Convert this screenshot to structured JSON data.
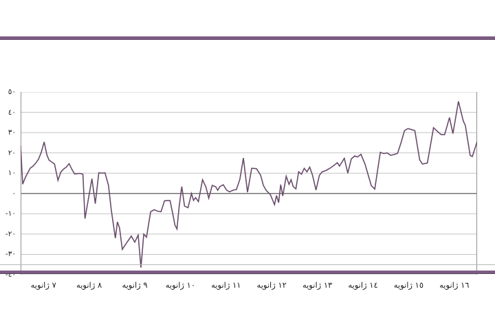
{
  "decor": {
    "top_bar_color": "#7d5c83",
    "top_bar_edge_color": "#5c4163",
    "bottom_bar_color": "#7d5c83",
    "bottom_bar_edge_color": "#5c4163",
    "separator_line_color": "#b8b8b8",
    "background_color": "#ffffff"
  },
  "chart_data": {
    "type": "line",
    "title": "",
    "xlabel": "",
    "ylabel": "",
    "legend": "none",
    "grid": "horizontal",
    "grid_color": "#c4c4c4",
    "zero_line_color": "#5a5a5a",
    "axis_color": "#8e8e8e",
    "line_color": "#694b6b",
    "label_color": "#1d1d1d",
    "ylim": [
      -40,
      50
    ],
    "xlim_days": [
      7,
      17
    ],
    "y_ticks": [
      50,
      40,
      30,
      20,
      10,
      0,
      -10,
      -20,
      -30,
      -40
    ],
    "y_tick_labels": [
      "٥٠",
      "٤٠",
      "٣٠",
      "٢٠",
      "١٠",
      "٠",
      "-١٠",
      "-٢٠",
      "-٣٠",
      "-٤٠"
    ],
    "x_tick_labels": [
      "٧ ژانویه",
      "٨ ژانویه",
      "٩ ژانویه",
      "١٠ ژانویه",
      "١١ ژانویه",
      "١٢ ژانویه",
      "١٣ ژانویه",
      "١٤ ژانویه",
      "١٥ ژانویه",
      "١٦ ژانویه"
    ],
    "series": [
      {
        "name": "series-1",
        "points": [
          [
            7.0,
            23.3
          ],
          [
            7.045,
            4.6
          ],
          [
            7.106,
            8.0
          ],
          [
            7.152,
            10.0
          ],
          [
            7.212,
            12.5
          ],
          [
            7.273,
            13.5
          ],
          [
            7.333,
            15.0
          ],
          [
            7.394,
            17.0
          ],
          [
            7.455,
            20.5
          ],
          [
            7.515,
            25.4
          ],
          [
            7.576,
            19.0
          ],
          [
            7.621,
            16.5
          ],
          [
            7.682,
            15.5
          ],
          [
            7.742,
            14.5
          ],
          [
            7.818,
            6.5
          ],
          [
            7.879,
            10.5
          ],
          [
            7.939,
            12.0
          ],
          [
            8.0,
            13.0
          ],
          [
            8.061,
            14.7
          ],
          [
            8.121,
            12.0
          ],
          [
            8.182,
            9.6
          ],
          [
            8.242,
            9.8
          ],
          [
            8.303,
            9.9
          ],
          [
            8.364,
            9.5
          ],
          [
            8.409,
            -12.4
          ],
          [
            8.561,
            7.3
          ],
          [
            8.636,
            -5.0
          ],
          [
            8.712,
            10.2
          ],
          [
            8.788,
            10.0
          ],
          [
            8.848,
            10.2
          ],
          [
            8.924,
            4.0
          ],
          [
            8.985,
            -8.0
          ],
          [
            9.03,
            -15.0
          ],
          [
            9.076,
            -22.0
          ],
          [
            9.121,
            -14.0
          ],
          [
            9.167,
            -17.0
          ],
          [
            9.227,
            -27.5
          ],
          [
            9.288,
            -25.5
          ],
          [
            9.424,
            -21.0
          ],
          [
            9.5,
            -24.0
          ],
          [
            9.576,
            -20.5
          ],
          [
            9.636,
            -36.5
          ],
          [
            9.697,
            -20.0
          ],
          [
            9.758,
            -21.5
          ],
          [
            9.848,
            -9.0
          ],
          [
            9.924,
            -8.0
          ],
          [
            10.0,
            -8.7
          ],
          [
            10.076,
            -9.0
          ],
          [
            10.152,
            -3.6
          ],
          [
            10.227,
            -3.5
          ],
          [
            10.273,
            -3.5
          ],
          [
            10.333,
            -10.0
          ],
          [
            10.379,
            -15.5
          ],
          [
            10.424,
            -17.5
          ],
          [
            10.47,
            -7.0
          ],
          [
            10.53,
            3.4
          ],
          [
            10.591,
            -6.2
          ],
          [
            10.667,
            -7.0
          ],
          [
            10.742,
            0.0
          ],
          [
            10.788,
            -3.4
          ],
          [
            10.833,
            -2.0
          ],
          [
            10.894,
            -4.0
          ],
          [
            10.985,
            6.8
          ],
          [
            11.061,
            3.0
          ],
          [
            11.121,
            -2.3
          ],
          [
            11.197,
            4.0
          ],
          [
            11.273,
            3.3
          ],
          [
            11.318,
            1.6
          ],
          [
            11.364,
            3.4
          ],
          [
            11.439,
            4.3
          ],
          [
            11.515,
            1.6
          ],
          [
            11.576,
            0.8
          ],
          [
            11.652,
            1.6
          ],
          [
            11.727,
            2.0
          ],
          [
            11.803,
            7.0
          ],
          [
            11.879,
            17.5
          ],
          [
            11.97,
            0.6
          ],
          [
            12.061,
            12.4
          ],
          [
            12.167,
            12.2
          ],
          [
            12.258,
            9.0
          ],
          [
            12.318,
            4.0
          ],
          [
            12.379,
            1.5
          ],
          [
            12.47,
            -0.5
          ],
          [
            12.561,
            -5.5
          ],
          [
            12.606,
            -1.0
          ],
          [
            12.652,
            -4.5
          ],
          [
            12.697,
            4.4
          ],
          [
            12.742,
            -1.2
          ],
          [
            12.818,
            8.5
          ],
          [
            12.879,
            4.5
          ],
          [
            12.924,
            6.8
          ],
          [
            12.97,
            3.4
          ],
          [
            13.03,
            2.3
          ],
          [
            13.091,
            10.7
          ],
          [
            13.152,
            9.5
          ],
          [
            13.212,
            12.4
          ],
          [
            13.273,
            10.7
          ],
          [
            13.333,
            13.0
          ],
          [
            13.394,
            9.0
          ],
          [
            13.47,
            1.7
          ],
          [
            13.545,
            9.0
          ],
          [
            13.606,
            10.7
          ],
          [
            13.697,
            11.4
          ],
          [
            13.773,
            12.4
          ],
          [
            13.848,
            13.6
          ],
          [
            13.939,
            15.2
          ],
          [
            13.985,
            13.5
          ],
          [
            14.091,
            17.3
          ],
          [
            14.167,
            10.0
          ],
          [
            14.242,
            17.0
          ],
          [
            14.318,
            18.5
          ],
          [
            14.379,
            18.0
          ],
          [
            14.455,
            19.3
          ],
          [
            14.545,
            14.4
          ],
          [
            14.682,
            3.8
          ],
          [
            14.758,
            2.2
          ],
          [
            14.879,
            20.3
          ],
          [
            14.955,
            19.7
          ],
          [
            15.03,
            20.0
          ],
          [
            15.106,
            18.8
          ],
          [
            15.182,
            19.2
          ],
          [
            15.258,
            19.8
          ],
          [
            15.333,
            25.0
          ],
          [
            15.409,
            31.0
          ],
          [
            15.485,
            32.0
          ],
          [
            15.561,
            31.5
          ],
          [
            15.636,
            31.0
          ],
          [
            15.742,
            16.5
          ],
          [
            15.803,
            14.5
          ],
          [
            15.909,
            15.0
          ],
          [
            16.045,
            32.4
          ],
          [
            16.136,
            30.5
          ],
          [
            16.212,
            29.0
          ],
          [
            16.288,
            29.0
          ],
          [
            16.394,
            37.4
          ],
          [
            16.47,
            29.5
          ],
          [
            16.591,
            45.4
          ],
          [
            16.697,
            35.7
          ],
          [
            16.742,
            33.5
          ],
          [
            16.848,
            18.7
          ],
          [
            16.894,
            18.2
          ],
          [
            17.0,
            25.5
          ]
        ]
      }
    ]
  }
}
